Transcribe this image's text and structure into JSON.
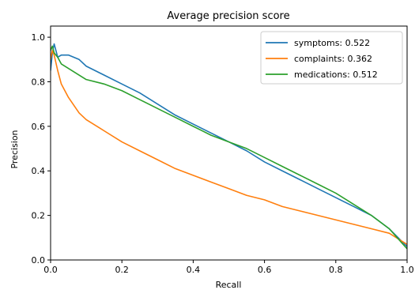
{
  "chart_data": {
    "type": "line",
    "title": "Average precision score",
    "xlabel": "Recall",
    "ylabel": "Precision",
    "xlim": [
      0.0,
      1.0
    ],
    "ylim": [
      0.0,
      1.05
    ],
    "x_ticks": [
      "0.0",
      "0.2",
      "0.4",
      "0.6",
      "0.8",
      "1.0"
    ],
    "y_ticks": [
      "0.0",
      "0.2",
      "0.4",
      "0.6",
      "0.8",
      "1.0"
    ],
    "grid": false,
    "legend_position": "top-right",
    "series": [
      {
        "name": "symptoms: 0.522",
        "color": "#1f77b4",
        "points": [
          [
            0.0,
            0.85
          ],
          [
            0.005,
            0.93
          ],
          [
            0.01,
            0.97
          ],
          [
            0.02,
            0.91
          ],
          [
            0.03,
            0.92
          ],
          [
            0.05,
            0.92
          ],
          [
            0.08,
            0.9
          ],
          [
            0.1,
            0.87
          ],
          [
            0.15,
            0.83
          ],
          [
            0.2,
            0.79
          ],
          [
            0.25,
            0.75
          ],
          [
            0.3,
            0.7
          ],
          [
            0.35,
            0.65
          ],
          [
            0.4,
            0.61
          ],
          [
            0.45,
            0.57
          ],
          [
            0.5,
            0.53
          ],
          [
            0.55,
            0.49
          ],
          [
            0.6,
            0.44
          ],
          [
            0.65,
            0.4
          ],
          [
            0.7,
            0.36
          ],
          [
            0.75,
            0.32
          ],
          [
            0.8,
            0.28
          ],
          [
            0.85,
            0.24
          ],
          [
            0.9,
            0.2
          ],
          [
            0.95,
            0.14
          ],
          [
            1.0,
            0.06
          ]
        ]
      },
      {
        "name": "complaints: 0.362",
        "color": "#ff7f0e",
        "points": [
          [
            0.0,
            0.9
          ],
          [
            0.005,
            0.94
          ],
          [
            0.01,
            0.92
          ],
          [
            0.02,
            0.85
          ],
          [
            0.03,
            0.79
          ],
          [
            0.05,
            0.73
          ],
          [
            0.08,
            0.66
          ],
          [
            0.1,
            0.63
          ],
          [
            0.15,
            0.58
          ],
          [
            0.2,
            0.53
          ],
          [
            0.25,
            0.49
          ],
          [
            0.3,
            0.45
          ],
          [
            0.35,
            0.41
          ],
          [
            0.4,
            0.38
          ],
          [
            0.45,
            0.35
          ],
          [
            0.5,
            0.32
          ],
          [
            0.55,
            0.29
          ],
          [
            0.6,
            0.27
          ],
          [
            0.65,
            0.24
          ],
          [
            0.7,
            0.22
          ],
          [
            0.75,
            0.2
          ],
          [
            0.8,
            0.18
          ],
          [
            0.85,
            0.16
          ],
          [
            0.9,
            0.14
          ],
          [
            0.95,
            0.12
          ],
          [
            1.0,
            0.07
          ]
        ]
      },
      {
        "name": "medications: 0.512",
        "color": "#2ca02c",
        "points": [
          [
            0.0,
            0.94
          ],
          [
            0.005,
            0.96
          ],
          [
            0.01,
            0.93
          ],
          [
            0.02,
            0.91
          ],
          [
            0.03,
            0.88
          ],
          [
            0.05,
            0.86
          ],
          [
            0.08,
            0.83
          ],
          [
            0.1,
            0.81
          ],
          [
            0.15,
            0.79
          ],
          [
            0.2,
            0.76
          ],
          [
            0.25,
            0.72
          ],
          [
            0.3,
            0.68
          ],
          [
            0.35,
            0.64
          ],
          [
            0.4,
            0.6
          ],
          [
            0.45,
            0.56
          ],
          [
            0.5,
            0.53
          ],
          [
            0.55,
            0.5
          ],
          [
            0.6,
            0.46
          ],
          [
            0.65,
            0.42
          ],
          [
            0.7,
            0.38
          ],
          [
            0.75,
            0.34
          ],
          [
            0.8,
            0.3
          ],
          [
            0.85,
            0.25
          ],
          [
            0.9,
            0.2
          ],
          [
            0.95,
            0.14
          ],
          [
            1.0,
            0.05
          ]
        ]
      }
    ]
  }
}
